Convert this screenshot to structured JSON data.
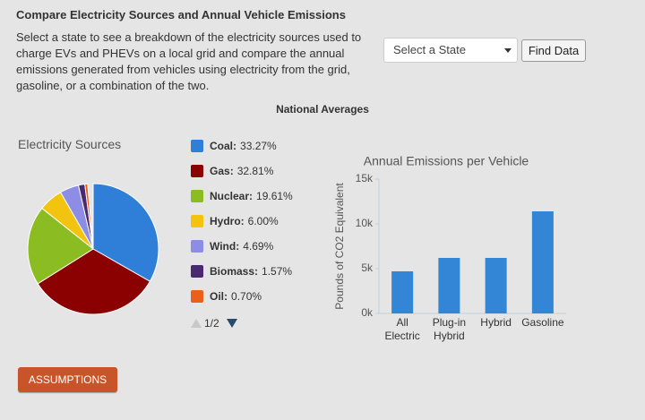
{
  "header": {
    "title": "Compare Electricity Sources and Annual Vehicle Emissions",
    "description": "Select a state to see a breakdown of the electricity sources used to charge EVs and PHEVs on a local grid and compare the annual emissions generated from vehicles using electricity from the grid, gasoline, or a combination of the two."
  },
  "controls": {
    "state_select": "Select a State",
    "find_button": "Find Data",
    "assumptions_button": "ASSUMPTIONS"
  },
  "section_title": "National Averages",
  "legend_pager": "1/2",
  "chart_data": [
    {
      "type": "pie",
      "title": "Electricity Sources",
      "categories": [
        "Coal",
        "Gas",
        "Nuclear",
        "Hydro",
        "Wind",
        "Biomass",
        "Oil"
      ],
      "values": [
        33.27,
        32.81,
        19.61,
        6.0,
        4.69,
        1.57,
        0.7
      ],
      "value_labels": [
        "33.27%",
        "32.81%",
        "19.61%",
        "6.00%",
        "4.69%",
        "1.57%",
        "0.70%"
      ],
      "colors": [
        "#2f7ed8",
        "#8b0000",
        "#8bbc21",
        "#f2c40f",
        "#8d8de6",
        "#492970",
        "#e8601a"
      ]
    },
    {
      "type": "bar",
      "title": "Annual Emissions per Vehicle",
      "ylabel": "Pounds of CO2 Equivalent",
      "categories": [
        "All Electric",
        "Plug-in Hybrid",
        "Hybrid",
        "Gasoline"
      ],
      "values": [
        4700,
        6200,
        6200,
        11400
      ],
      "color": "#3385d6",
      "ylim": [
        0,
        15000
      ],
      "yticks": [
        {
          "value": 0,
          "label": "0k"
        },
        {
          "value": 5000,
          "label": "5k"
        },
        {
          "value": 10000,
          "label": "10k"
        },
        {
          "value": 15000,
          "label": "15k"
        }
      ],
      "grid": false
    }
  ]
}
